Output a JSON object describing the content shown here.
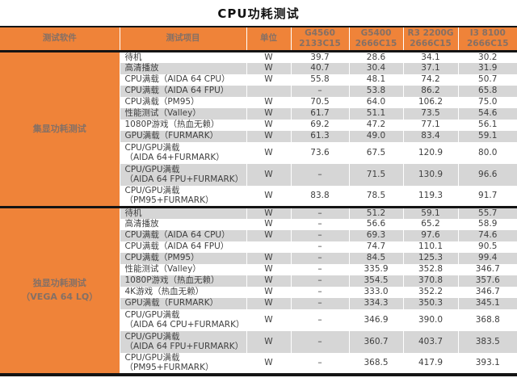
{
  "colors": {
    "accent_orange": "#EF8339",
    "band_gray": "#D6D6D6",
    "border_black": "#141414",
    "header_text": "#857065",
    "body_text": "#3F3F3F",
    "title_text": "#111111"
  },
  "chart_data": {
    "type": "table",
    "title": "CPU功耗测试",
    "unit_symbol": "W",
    "headers": {
      "software": "测试软件",
      "item": "测试项目",
      "unit": "单位",
      "cpus": [
        {
          "model": "G4560",
          "memory": "2133C15"
        },
        {
          "model": "G5400",
          "memory": "2666C15"
        },
        {
          "model": "R3 2200G",
          "memory": "2666C15"
        },
        {
          "model": "I3 8100",
          "memory": "2666C15"
        }
      ]
    },
    "sections": [
      {
        "label": "集显功耗测试",
        "rows": [
          {
            "item": "待机",
            "unit": "W",
            "values": [
              "39.7",
              "28.6",
              "34.1",
              "30.2"
            ]
          },
          {
            "item": "高清播放",
            "unit": "W",
            "values": [
              "40.7",
              "30.4",
              "37.1",
              "31.9"
            ]
          },
          {
            "item": "CPU满载（AIDA 64 CPU）",
            "unit": "W",
            "values": [
              "55.8",
              "48.1",
              "74.2",
              "50.7"
            ]
          },
          {
            "item": "CPU满载（AIDA 64 FPU）",
            "unit": "",
            "values": [
              "–",
              "53.8",
              "86.2",
              "65.8"
            ]
          },
          {
            "item": "CPU满载（PM95）",
            "unit": "W",
            "values": [
              "70.5",
              "64.0",
              "106.2",
              "75.0"
            ]
          },
          {
            "item": "性能测试（Valley）",
            "unit": "W",
            "values": [
              "61.7",
              "51.1",
              "73.5",
              "54.6"
            ]
          },
          {
            "item": "1080P游戏（热血无赖）",
            "unit": "W",
            "values": [
              "69.2",
              "47.2",
              "77.1",
              "56.1"
            ]
          },
          {
            "item": "GPU满载（FURMARK）",
            "unit": "W",
            "values": [
              "61.3",
              "49.0",
              "83.4",
              "59.1"
            ]
          },
          {
            "item": "CPU/GPU满载\n（AIDA 64+FURMARK）",
            "unit": "W",
            "values": [
              "73.6",
              "67.5",
              "120.9",
              "80.0"
            ]
          },
          {
            "item": "CPU/GPU满载\n（AIDA 64 FPU+FURMARK）",
            "unit": "W",
            "values": [
              "–",
              "71.5",
              "130.9",
              "96.6"
            ]
          },
          {
            "item": "CPU/GPU满载\n（PM95+FURMARK）",
            "unit": "W",
            "values": [
              "83.8",
              "78.5",
              "119.3",
              "91.7"
            ]
          }
        ]
      },
      {
        "label": "独显功耗测试\n（VEGA 64 LQ）",
        "rows": [
          {
            "item": "待机",
            "unit": "W",
            "values": [
              "–",
              "51.2",
              "59.1",
              "55.7"
            ]
          },
          {
            "item": "高清播放",
            "unit": "W",
            "values": [
              "–",
              "56.6",
              "65.2",
              "58.9"
            ]
          },
          {
            "item": "CPU满载（AIDA 64 CPU）",
            "unit": "W",
            "values": [
              "–",
              "69.3",
              "97.6",
              "74.6"
            ]
          },
          {
            "item": "CPU满载（AIDA 64 FPU）",
            "unit": "",
            "values": [
              "–",
              "74.7",
              "110.1",
              "90.5"
            ]
          },
          {
            "item": "CPU满载（PM95）",
            "unit": "W",
            "values": [
              "–",
              "84.5",
              "125.3",
              "99.4"
            ]
          },
          {
            "item": "性能测试（Valley）",
            "unit": "W",
            "values": [
              "–",
              "335.9",
              "352.8",
              "346.7"
            ]
          },
          {
            "item": "1080P游戏（热血无赖）",
            "unit": "W",
            "values": [
              "–",
              "354.5",
              "370.8",
              "357.6"
            ]
          },
          {
            "item": "4K游戏（热血无赖）",
            "unit": "W",
            "values": [
              "–",
              "333.0",
              "352.2",
              "346.7"
            ]
          },
          {
            "item": "GPU满载（FURMARK）",
            "unit": "W",
            "values": [
              "–",
              "334.3",
              "350.3",
              "345.1"
            ]
          },
          {
            "item": "CPU/GPU满载\n（AIDA 64 CPU+FURMARK）",
            "unit": "W",
            "values": [
              "–",
              "346.9",
              "390.0",
              "368.8"
            ]
          },
          {
            "item": "CPU/GPU满载\n（AIDA 64 FPU+FURMARK）",
            "unit": "W",
            "values": [
              "–",
              "360.7",
              "403.7",
              "383.5"
            ]
          },
          {
            "item": "CPU/GPU满载\n（PM95+FURMARK）",
            "unit": "W",
            "values": [
              "–",
              "368.5",
              "417.9",
              "393.1"
            ]
          }
        ]
      }
    ]
  }
}
